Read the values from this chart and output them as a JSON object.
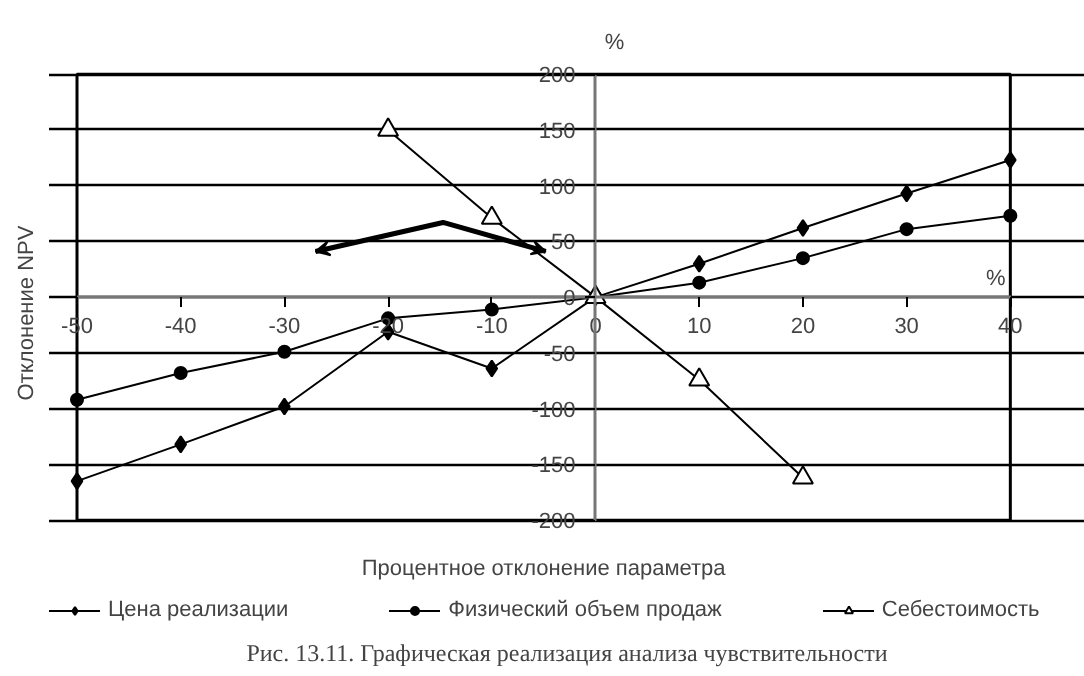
{
  "chart_data": {
    "type": "line",
    "title": "Рис. 13.11. Графическая реализация анализа чувствительности",
    "xlabel": "Процентное отклонение параметра",
    "ylabel": "Отклонение NPV",
    "annotations": [
      "%",
      "%"
    ],
    "x": [
      -50,
      -40,
      -30,
      -20,
      -10,
      0,
      10,
      20,
      30,
      40
    ],
    "series": [
      {
        "name": "Цена реализации",
        "color": "#000000",
        "marker": "diamond",
        "values": [
          -165,
          -132,
          -98,
          -31,
          -64,
          0,
          30,
          62,
          93,
          123
        ]
      },
      {
        "name": "Физический объем продаж",
        "color": "#000000",
        "marker": "circle",
        "values": [
          -92,
          -68,
          -49,
          -19,
          -11,
          0,
          13,
          35,
          61,
          73
        ]
      },
      {
        "name": "Себестоимость",
        "color": "#000000",
        "marker": "triangle",
        "x": [
          -20,
          -10,
          0,
          10,
          20
        ],
        "values": [
          150,
          71,
          0,
          -74,
          -162
        ]
      }
    ],
    "xlim": [
      -50,
      40
    ],
    "ylim": [
      -200,
      200
    ],
    "xticks": [
      -50,
      -40,
      -30,
      -20,
      -10,
      0,
      10,
      20,
      30,
      40
    ],
    "yticks": [
      -200,
      -150,
      -100,
      -50,
      0,
      50,
      100,
      150,
      200
    ],
    "grid": "y",
    "legend": "bottom",
    "line_style": "solid"
  }
}
